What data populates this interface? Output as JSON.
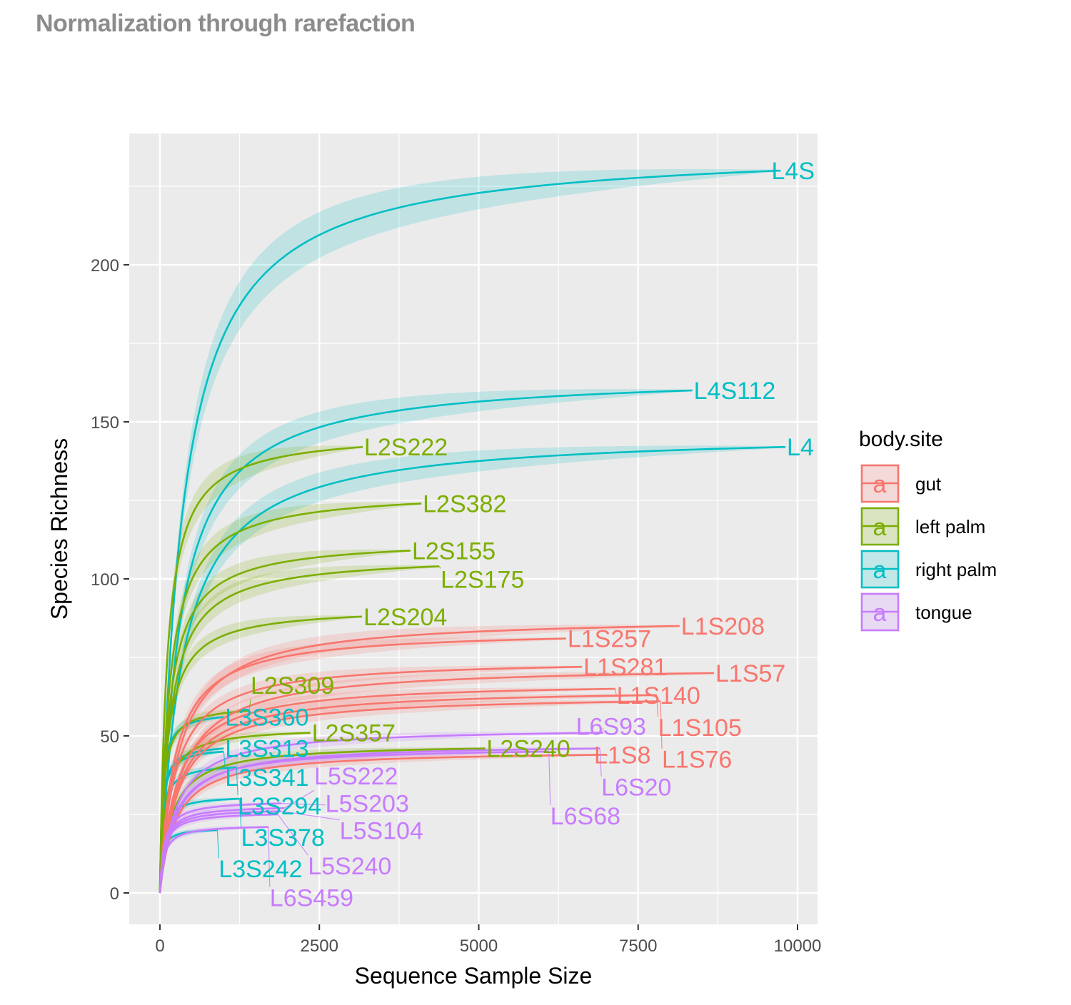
{
  "page_title": "Normalization through rarefaction",
  "chart_data": {
    "type": "line",
    "title": "Normalization through rarefaction",
    "xlabel": "Sequence Sample Size",
    "ylabel": "Species Richness",
    "xlim": [
      -1000,
      10300
    ],
    "ylim": [
      -10,
      242
    ],
    "xticks": [
      0,
      2500,
      5000,
      7500,
      10000
    ],
    "xtick_labels": [
      "0",
      "2500",
      "5000",
      "7500",
      "10000"
    ],
    "yticks": [
      0,
      50,
      100,
      150,
      200
    ],
    "ytick_labels": [
      "0",
      "50",
      "100",
      "150",
      "200"
    ],
    "grid": true,
    "legend": {
      "title": "body.site",
      "placement": "right",
      "key_glyph": "a",
      "entries": [
        {
          "name": "gut",
          "color": "#F8766D"
        },
        {
          "name": "left palm",
          "color": "#7CAE00"
        },
        {
          "name": "right palm",
          "color": "#00BFC4"
        },
        {
          "name": "tongue",
          "color": "#C77CFF"
        }
      ]
    },
    "series": [
      {
        "label": "L4S",
        "site": "right palm",
        "depth": 9730,
        "richness": 230
      },
      {
        "label": "L4S112",
        "site": "right palm",
        "depth": 8350,
        "richness": 160
      },
      {
        "label": "L4",
        "site": "right palm",
        "depth": 9810,
        "richness": 142
      },
      {
        "label": "L3S360",
        "site": "right palm",
        "depth": 1000,
        "richness": 56
      },
      {
        "label": "L3S313",
        "site": "right palm",
        "depth": 1000,
        "richness": 46
      },
      {
        "label": "L3S341",
        "site": "right palm",
        "depth": 1000,
        "richness": 45
      },
      {
        "label": "L3S294",
        "site": "right palm",
        "depth": 1200,
        "richness": 40
      },
      {
        "label": "L3S378",
        "site": "right palm",
        "depth": 1250,
        "richness": 30
      },
      {
        "label": "L3S242",
        "site": "right palm",
        "depth": 900,
        "richness": 20
      },
      {
        "label": "L2S222",
        "site": "left palm",
        "depth": 3180,
        "richness": 142
      },
      {
        "label": "L2S382",
        "site": "left palm",
        "depth": 4100,
        "richness": 124
      },
      {
        "label": "L2S155",
        "site": "left palm",
        "depth": 3930,
        "richness": 109
      },
      {
        "label": "L2S175",
        "site": "left palm",
        "depth": 4380,
        "richness": 104
      },
      {
        "label": "L2S204",
        "site": "left palm",
        "depth": 3170,
        "richness": 88
      },
      {
        "label": "L2S309",
        "site": "left palm",
        "depth": 1400,
        "richness": 58
      },
      {
        "label": "L2S357",
        "site": "left palm",
        "depth": 2360,
        "richness": 51
      },
      {
        "label": "L2S240",
        "site": "left palm",
        "depth": 5100,
        "richness": 46
      },
      {
        "label": "L1S208",
        "site": "gut",
        "depth": 8150,
        "richness": 85
      },
      {
        "label": "L1S257",
        "site": "gut",
        "depth": 6370,
        "richness": 81
      },
      {
        "label": "L1S281",
        "site": "gut",
        "depth": 6620,
        "richness": 72
      },
      {
        "label": "L1S57",
        "site": "gut",
        "depth": 8690,
        "richness": 70
      },
      {
        "label": "L1S140",
        "site": "gut",
        "depth": 7140,
        "richness": 65
      },
      {
        "label": "L1S105",
        "site": "gut",
        "depth": 7790,
        "richness": 63
      },
      {
        "label": "L1S76",
        "site": "gut",
        "depth": 7850,
        "richness": 61
      },
      {
        "label": "L1S8",
        "site": "gut",
        "depth": 7010,
        "richness": 44
      },
      {
        "label": "L6S93",
        "site": "tongue",
        "depth": 6950,
        "richness": 51
      },
      {
        "label": "L6S20",
        "site": "tongue",
        "depth": 6900,
        "richness": 46
      },
      {
        "label": "L6S68",
        "site": "tongue",
        "depth": 6100,
        "richness": 45
      },
      {
        "label": "L5S203",
        "site": "tongue",
        "depth": 1900,
        "richness": 28.5
      },
      {
        "label": "L5S222",
        "site": "tongue",
        "depth": 1950,
        "richness": 27
      },
      {
        "label": "L5S104",
        "site": "tongue",
        "depth": 1900,
        "richness": 26
      },
      {
        "label": "L5S240",
        "site": "tongue",
        "depth": 1850,
        "richness": 25
      },
      {
        "label": "L6S459",
        "site": "tongue",
        "depth": 1700,
        "richness": 21
      }
    ]
  }
}
